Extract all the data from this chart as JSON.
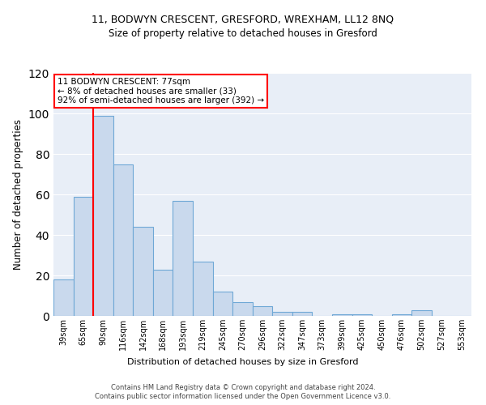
{
  "title1": "11, BODWYN CRESCENT, GRESFORD, WREXHAM, LL12 8NQ",
  "title2": "Size of property relative to detached houses in Gresford",
  "xlabel": "Distribution of detached houses by size in Gresford",
  "ylabel": "Number of detached properties",
  "bar_color": "#c9d9ed",
  "bar_edge_color": "#6fa8d6",
  "categories": [
    "39sqm",
    "65sqm",
    "90sqm",
    "116sqm",
    "142sqm",
    "168sqm",
    "193sqm",
    "219sqm",
    "245sqm",
    "270sqm",
    "296sqm",
    "322sqm",
    "347sqm",
    "373sqm",
    "399sqm",
    "425sqm",
    "450sqm",
    "476sqm",
    "502sqm",
    "527sqm",
    "553sqm"
  ],
  "values": [
    18,
    59,
    99,
    75,
    44,
    23,
    57,
    27,
    12,
    7,
    5,
    2,
    2,
    0,
    1,
    1,
    0,
    1,
    3,
    0,
    0
  ],
  "red_line_x": 1.5,
  "annotation_text": "11 BODWYN CRESCENT: 77sqm\n← 8% of detached houses are smaller (33)\n92% of semi-detached houses are larger (392) →",
  "annotation_box_color": "white",
  "annotation_box_edge": "red",
  "footer1": "Contains HM Land Registry data © Crown copyright and database right 2024.",
  "footer2": "Contains public sector information licensed under the Open Government Licence v3.0.",
  "ylim": [
    0,
    120
  ],
  "bg_color": "#e8eef7",
  "title_fontsize": 9,
  "subtitle_fontsize": 8.5,
  "ylabel_fontsize": 8.5,
  "tick_fontsize": 7,
  "annotation_fontsize": 7.5,
  "xlabel_fontsize": 8,
  "footer_fontsize": 6
}
